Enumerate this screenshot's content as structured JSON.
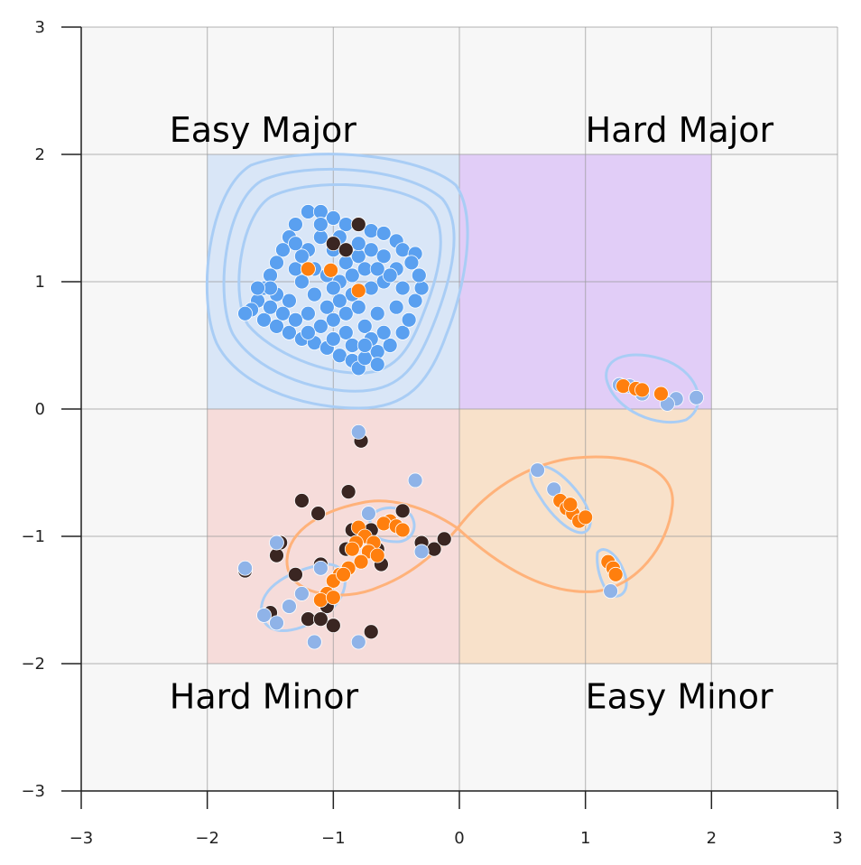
{
  "chart_data": {
    "type": "scatter",
    "title": "",
    "xlabel": "",
    "ylabel": "",
    "xlim": [
      -3,
      3
    ],
    "ylim": [
      -3,
      3
    ],
    "x_ticks": [
      "−3",
      "−2",
      "−1",
      "0",
      "1",
      "2",
      "3"
    ],
    "y_ticks": [
      "−3",
      "−2",
      "−1",
      "0",
      "1",
      "2",
      "3"
    ],
    "grid": true,
    "regions": [
      {
        "label": "Easy Major",
        "x": [
          -2,
          0
        ],
        "y": [
          0,
          2
        ],
        "color": "#cfe0f7"
      },
      {
        "label": "Hard Major",
        "x": [
          0,
          2
        ],
        "y": [
          0,
          2
        ],
        "color": "#d9bff7"
      },
      {
        "label": "Hard Minor",
        "x": [
          -2,
          0
        ],
        "y": [
          -2,
          0
        ],
        "color": "#f5d3d0"
      },
      {
        "label": "Easy Minor",
        "x": [
          0,
          2
        ],
        "y": [
          -2,
          0
        ],
        "color": "#f8d9bb"
      }
    ],
    "series_colors": {
      "blue": "#5aa0f0",
      "light_blue": "#8fb3e8",
      "orange": "#ff7f0e",
      "dark": "#3a2622",
      "blue_contour": "#a9cdf5",
      "orange_contour": "#ffb27a"
    },
    "series": [
      {
        "color": "blue",
        "points": [
          [
            -1.2,
            1.55
          ],
          [
            -1.1,
            1.55
          ],
          [
            -1.0,
            1.5
          ],
          [
            -0.9,
            1.45
          ],
          [
            -0.8,
            1.45
          ],
          [
            -0.7,
            1.4
          ],
          [
            -0.6,
            1.38
          ],
          [
            -0.5,
            1.32
          ],
          [
            -0.45,
            1.25
          ],
          [
            -0.35,
            1.22
          ],
          [
            -1.3,
            1.45
          ],
          [
            -1.35,
            1.35
          ],
          [
            -1.4,
            1.25
          ],
          [
            -1.45,
            1.15
          ],
          [
            -1.5,
            1.05
          ],
          [
            -1.55,
            0.95
          ],
          [
            -1.6,
            0.85
          ],
          [
            -1.65,
            0.78
          ],
          [
            -1.7,
            0.75
          ],
          [
            -1.55,
            0.7
          ],
          [
            -1.45,
            0.65
          ],
          [
            -1.35,
            0.6
          ],
          [
            -1.25,
            0.55
          ],
          [
            -1.15,
            0.52
          ],
          [
            -1.05,
            0.48
          ],
          [
            -0.95,
            0.42
          ],
          [
            -0.85,
            0.38
          ],
          [
            -0.8,
            0.32
          ],
          [
            -0.75,
            0.4
          ],
          [
            -0.65,
            0.45
          ],
          [
            -0.55,
            0.5
          ],
          [
            -0.45,
            0.6
          ],
          [
            -0.4,
            0.7
          ],
          [
            -0.35,
            0.85
          ],
          [
            -0.3,
            0.95
          ],
          [
            -0.32,
            1.05
          ],
          [
            -0.38,
            1.15
          ],
          [
            -0.5,
            1.1
          ],
          [
            -0.6,
            1.0
          ],
          [
            -0.7,
            0.95
          ],
          [
            -0.85,
            0.9
          ],
          [
            -0.95,
            0.85
          ],
          [
            -1.05,
            0.8
          ],
          [
            -1.15,
            0.9
          ],
          [
            -1.25,
            1.0
          ],
          [
            -1.3,
            1.1
          ],
          [
            -1.2,
            1.25
          ],
          [
            -1.1,
            1.35
          ],
          [
            -1.0,
            1.25
          ],
          [
            -0.9,
            1.15
          ],
          [
            -0.8,
            1.2
          ],
          [
            -0.7,
            1.25
          ],
          [
            -0.6,
            1.2
          ],
          [
            -0.55,
            1.05
          ],
          [
            -0.65,
            0.75
          ],
          [
            -0.75,
            0.65
          ],
          [
            -0.9,
            0.6
          ],
          [
            -1.0,
            0.7
          ],
          [
            -1.1,
            0.65
          ],
          [
            -1.2,
            0.75
          ],
          [
            -1.35,
            0.85
          ],
          [
            -1.45,
            0.9
          ],
          [
            -1.5,
            0.8
          ],
          [
            -1.4,
            0.75
          ],
          [
            -1.25,
            1.2
          ],
          [
            -1.15,
            1.1
          ],
          [
            -1.05,
            1.05
          ],
          [
            -0.95,
            1.0
          ],
          [
            -0.85,
            1.05
          ],
          [
            -0.75,
            1.1
          ],
          [
            -0.65,
            1.1
          ],
          [
            -0.45,
            0.95
          ],
          [
            -0.5,
            0.8
          ],
          [
            -0.6,
            0.6
          ],
          [
            -0.7,
            0.55
          ],
          [
            -0.85,
            0.5
          ],
          [
            -1.0,
            0.55
          ],
          [
            -1.2,
            0.6
          ],
          [
            -1.3,
            0.7
          ],
          [
            -1.0,
            0.95
          ],
          [
            -0.9,
            0.75
          ],
          [
            -0.8,
            0.8
          ],
          [
            -1.1,
            1.45
          ],
          [
            -0.95,
            1.35
          ],
          [
            -0.8,
            1.3
          ],
          [
            -1.3,
            1.3
          ],
          [
            -1.5,
            0.95
          ],
          [
            -1.6,
            0.95
          ],
          [
            -0.75,
            0.5
          ],
          [
            -0.65,
            0.35
          ]
        ]
      },
      {
        "color": "dark",
        "points": [
          [
            -1.2,
            1.1
          ],
          [
            -1.0,
            1.3
          ],
          [
            -0.8,
            1.45
          ],
          [
            -0.9,
            1.25
          ],
          [
            -0.78,
            -0.25
          ],
          [
            -1.25,
            -0.72
          ],
          [
            -1.12,
            -0.82
          ],
          [
            -0.88,
            -0.65
          ],
          [
            -1.1,
            -1.22
          ],
          [
            -1.3,
            -1.3
          ],
          [
            -1.42,
            -1.05
          ],
          [
            -1.45,
            -1.15
          ],
          [
            -1.2,
            -1.65
          ],
          [
            -1.0,
            -1.7
          ],
          [
            -0.7,
            -1.75
          ],
          [
            -0.45,
            -0.8
          ],
          [
            -0.3,
            -1.05
          ],
          [
            -0.2,
            -1.1
          ],
          [
            -0.12,
            -1.02
          ],
          [
            -0.85,
            -0.95
          ],
          [
            -0.65,
            -1.1
          ],
          [
            -0.62,
            -1.22
          ],
          [
            -0.7,
            -0.95
          ],
          [
            -1.05,
            -1.55
          ],
          [
            -1.1,
            -1.65
          ],
          [
            -1.5,
            -1.6
          ],
          [
            -1.7,
            -1.27
          ],
          [
            -0.9,
            -1.1
          ]
        ]
      },
      {
        "color": "light_blue",
        "points": [
          [
            -0.8,
            -0.18
          ],
          [
            -0.35,
            -0.56
          ],
          [
            -0.72,
            -0.82
          ],
          [
            -1.45,
            -1.05
          ],
          [
            -1.7,
            -1.25
          ],
          [
            -1.1,
            -1.25
          ],
          [
            -1.25,
            -1.45
          ],
          [
            -1.35,
            -1.55
          ],
          [
            -1.55,
            -1.62
          ],
          [
            -1.45,
            -1.68
          ],
          [
            -1.15,
            -1.83
          ],
          [
            -0.8,
            -1.83
          ],
          [
            -0.3,
            -1.12
          ],
          [
            0.62,
            -0.48
          ],
          [
            0.75,
            -0.63
          ],
          [
            1.2,
            -1.43
          ],
          [
            1.27,
            0.19
          ],
          [
            1.45,
            0.12
          ],
          [
            1.72,
            0.08
          ],
          [
            1.88,
            0.09
          ],
          [
            1.65,
            0.04
          ],
          [
            1.35,
            0.18
          ]
        ]
      },
      {
        "color": "orange",
        "points": [
          [
            -1.2,
            1.1
          ],
          [
            -1.02,
            1.09
          ],
          [
            -0.8,
            0.93
          ],
          [
            -0.8,
            -0.93
          ],
          [
            -0.75,
            -1.0
          ],
          [
            -0.68,
            -1.05
          ],
          [
            -0.72,
            -1.12
          ],
          [
            -0.82,
            -1.05
          ],
          [
            -0.85,
            -1.1
          ],
          [
            -0.78,
            -1.2
          ],
          [
            -0.65,
            -1.15
          ],
          [
            -0.55,
            -0.88
          ],
          [
            -0.6,
            -0.9
          ],
          [
            -0.5,
            -0.92
          ],
          [
            -0.45,
            -0.95
          ],
          [
            -0.88,
            -1.25
          ],
          [
            -0.95,
            -1.3
          ],
          [
            -1.0,
            -1.35
          ],
          [
            -1.05,
            -1.45
          ],
          [
            -1.1,
            -1.5
          ],
          [
            -1.0,
            -1.48
          ],
          [
            -0.92,
            -1.3
          ],
          [
            0.8,
            -0.72
          ],
          [
            0.85,
            -0.78
          ],
          [
            0.9,
            -0.82
          ],
          [
            0.95,
            -0.88
          ],
          [
            1.0,
            -0.85
          ],
          [
            0.88,
            -0.75
          ],
          [
            1.18,
            -1.2
          ],
          [
            1.22,
            -1.25
          ],
          [
            1.24,
            -1.3
          ],
          [
            1.3,
            0.18
          ],
          [
            1.4,
            0.16
          ],
          [
            1.45,
            0.15
          ],
          [
            1.6,
            0.12
          ]
        ]
      }
    ]
  }
}
